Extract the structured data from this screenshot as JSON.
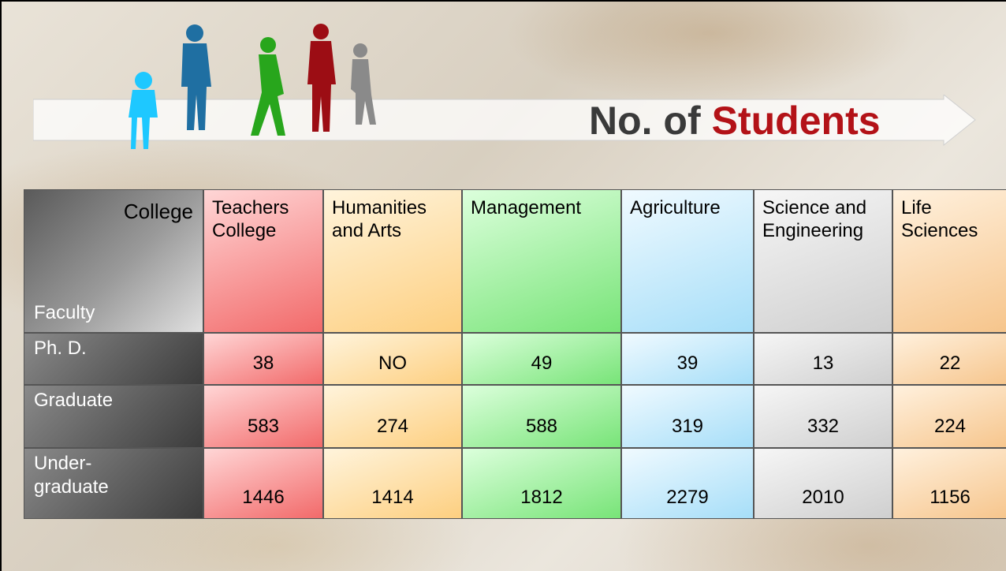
{
  "header": {
    "title_start": "No. of",
    "title_highlight": "Students"
  },
  "table": {
    "corner": {
      "top": "College",
      "bottom": "Faculty"
    },
    "columns": [
      "Teachers College",
      "Humanities and Arts",
      "Management",
      "Agriculture",
      "Science and Engineering",
      "Life Sciences"
    ],
    "rows": [
      {
        "label": "Ph. D.",
        "values": [
          38,
          "NO",
          49,
          39,
          13,
          22
        ]
      },
      {
        "label": "Graduate",
        "values": [
          583,
          274,
          588,
          319,
          332,
          224
        ]
      },
      {
        "label": "Under-graduate",
        "values": [
          1446,
          1414,
          1812,
          2279,
          2010,
          1156
        ]
      }
    ]
  }
}
